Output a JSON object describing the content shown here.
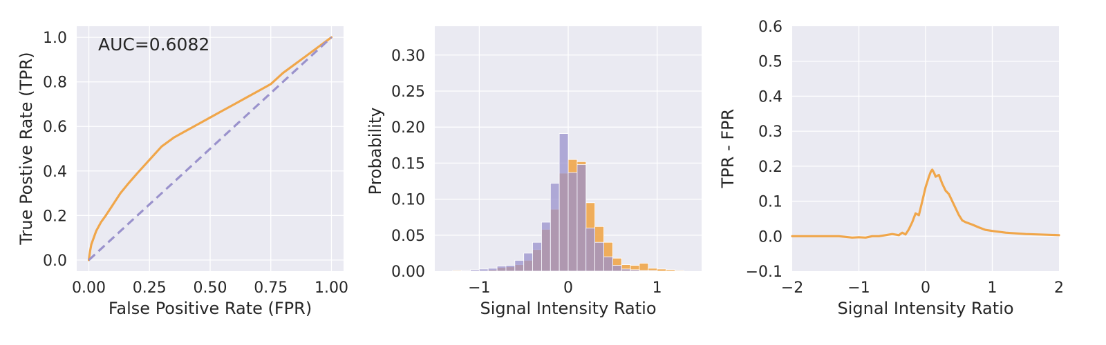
{
  "colors": {
    "orange": "#f0a64a",
    "purple": "#9a92cc",
    "panel_background": "#eaeaf2",
    "grid": "#ffffff",
    "text": "#262626"
  },
  "chart_data": [
    {
      "type": "line",
      "xlabel": "False Positive Rate (FPR)",
      "ylabel": "True Postive Rate (TPR)",
      "annotation": "AUC=0.6082",
      "xlim": [
        -0.05,
        1.05
      ],
      "ylim": [
        -0.05,
        1.05
      ],
      "xticks": [
        0.0,
        0.25,
        0.5,
        0.75,
        1.0
      ],
      "xtick_labels": [
        "0.00",
        "0.25",
        "0.50",
        "0.75",
        "1.00"
      ],
      "yticks": [
        0.0,
        0.2,
        0.4,
        0.6,
        0.8,
        1.0
      ],
      "ytick_labels": [
        "0.0",
        "0.2",
        "0.4",
        "0.6",
        "0.8",
        "1.0"
      ],
      "grid": true,
      "series": [
        {
          "color": "orange",
          "style": "solid",
          "x": [
            0.0,
            0.005,
            0.01,
            0.02,
            0.03,
            0.05,
            0.07,
            0.1,
            0.13,
            0.16,
            0.2,
            0.25,
            0.3,
            0.35,
            0.4,
            0.45,
            0.5,
            0.55,
            0.6,
            0.65,
            0.7,
            0.75,
            0.8,
            0.85,
            0.9,
            0.95,
            1.0
          ],
          "y": [
            0.0,
            0.04,
            0.07,
            0.1,
            0.13,
            0.17,
            0.2,
            0.25,
            0.3,
            0.34,
            0.39,
            0.45,
            0.51,
            0.55,
            0.58,
            0.61,
            0.64,
            0.67,
            0.7,
            0.73,
            0.76,
            0.79,
            0.84,
            0.88,
            0.92,
            0.96,
            1.0
          ]
        },
        {
          "color": "purple",
          "style": "dashed",
          "x": [
            0.0,
            1.0
          ],
          "y": [
            0.0,
            1.0
          ]
        }
      ]
    },
    {
      "type": "bar",
      "xlabel": "Signal Intensity Ratio",
      "ylabel": "Probability",
      "xlim": [
        -1.5,
        1.5
      ],
      "ylim": [
        0.0,
        0.34
      ],
      "xticks": [
        -1,
        0,
        1
      ],
      "xtick_labels": [
        "−1",
        "0",
        "1"
      ],
      "yticks": [
        0.0,
        0.05,
        0.1,
        0.15,
        0.2,
        0.25,
        0.3
      ],
      "ytick_labels": [
        "0.00",
        "0.05",
        "0.10",
        "0.15",
        "0.20",
        "0.25",
        "0.30"
      ],
      "grid": true,
      "bin_width": 0.1,
      "series": [
        {
          "color": "orange",
          "bin_left": [
            -1.3,
            -1.2,
            -1.1,
            -1.0,
            -0.9,
            -0.8,
            -0.7,
            -0.6,
            -0.5,
            -0.4,
            -0.3,
            -0.2,
            -0.1,
            0.0,
            0.1,
            0.2,
            0.3,
            0.4,
            0.5,
            0.6,
            0.7,
            0.8,
            0.9,
            1.0,
            1.1,
            1.2
          ],
          "values": [
            0.001,
            0.001,
            0.001,
            0.001,
            0.002,
            0.005,
            0.006,
            0.009,
            0.015,
            0.03,
            0.058,
            0.086,
            0.136,
            0.155,
            0.152,
            0.095,
            0.062,
            0.04,
            0.018,
            0.009,
            0.008,
            0.011,
            0.004,
            0.003,
            0.002,
            0.001
          ]
        },
        {
          "color": "purple",
          "bin_left": [
            -1.3,
            -1.2,
            -1.1,
            -1.0,
            -0.9,
            -0.8,
            -0.7,
            -0.6,
            -0.5,
            -0.4,
            -0.3,
            -0.2,
            -0.1,
            0.0,
            0.1,
            0.2,
            0.3,
            0.4,
            0.5,
            0.6,
            0.7,
            0.8,
            0.9,
            1.0,
            1.1,
            1.2
          ],
          "values": [
            0.0,
            0.001,
            0.002,
            0.003,
            0.004,
            0.007,
            0.008,
            0.015,
            0.025,
            0.04,
            0.068,
            0.122,
            0.191,
            0.137,
            0.148,
            0.06,
            0.04,
            0.02,
            0.008,
            0.003,
            0.002,
            0.001,
            0.001,
            0.0,
            0.0,
            0.0
          ]
        }
      ]
    },
    {
      "type": "line",
      "xlabel": "Signal Intensity Ratio",
      "ylabel": "TPR - FPR",
      "xlim": [
        -2,
        2
      ],
      "ylim": [
        -0.1,
        0.6
      ],
      "xticks": [
        -2,
        -1,
        0,
        1,
        2
      ],
      "xtick_labels": [
        "−2",
        "−1",
        "0",
        "1",
        "2"
      ],
      "yticks": [
        -0.1,
        0.0,
        0.1,
        0.2,
        0.3,
        0.4,
        0.5,
        0.6
      ],
      "ytick_labels": [
        "−0.1",
        "0.0",
        "0.1",
        "0.2",
        "0.3",
        "0.4",
        "0.5",
        "0.6"
      ],
      "grid": true,
      "series": [
        {
          "color": "orange",
          "style": "solid",
          "x": [
            -2.0,
            -1.5,
            -1.3,
            -1.2,
            -1.1,
            -1.0,
            -0.9,
            -0.8,
            -0.7,
            -0.6,
            -0.5,
            -0.4,
            -0.35,
            -0.3,
            -0.25,
            -0.2,
            -0.15,
            -0.1,
            -0.05,
            0.0,
            0.05,
            0.08,
            0.1,
            0.13,
            0.15,
            0.2,
            0.25,
            0.3,
            0.35,
            0.4,
            0.45,
            0.5,
            0.55,
            0.6,
            0.7,
            0.8,
            0.9,
            1.0,
            1.2,
            1.5,
            2.0
          ],
          "y": [
            0.0,
            0.0,
            0.0,
            -0.002,
            -0.004,
            -0.003,
            -0.004,
            0.0,
            0.0,
            0.003,
            0.006,
            0.003,
            0.01,
            0.005,
            0.02,
            0.04,
            0.065,
            0.06,
            0.1,
            0.14,
            0.17,
            0.185,
            0.19,
            0.18,
            0.17,
            0.175,
            0.15,
            0.13,
            0.12,
            0.1,
            0.08,
            0.06,
            0.045,
            0.04,
            0.033,
            0.025,
            0.018,
            0.015,
            0.01,
            0.006,
            0.003
          ]
        }
      ]
    }
  ]
}
